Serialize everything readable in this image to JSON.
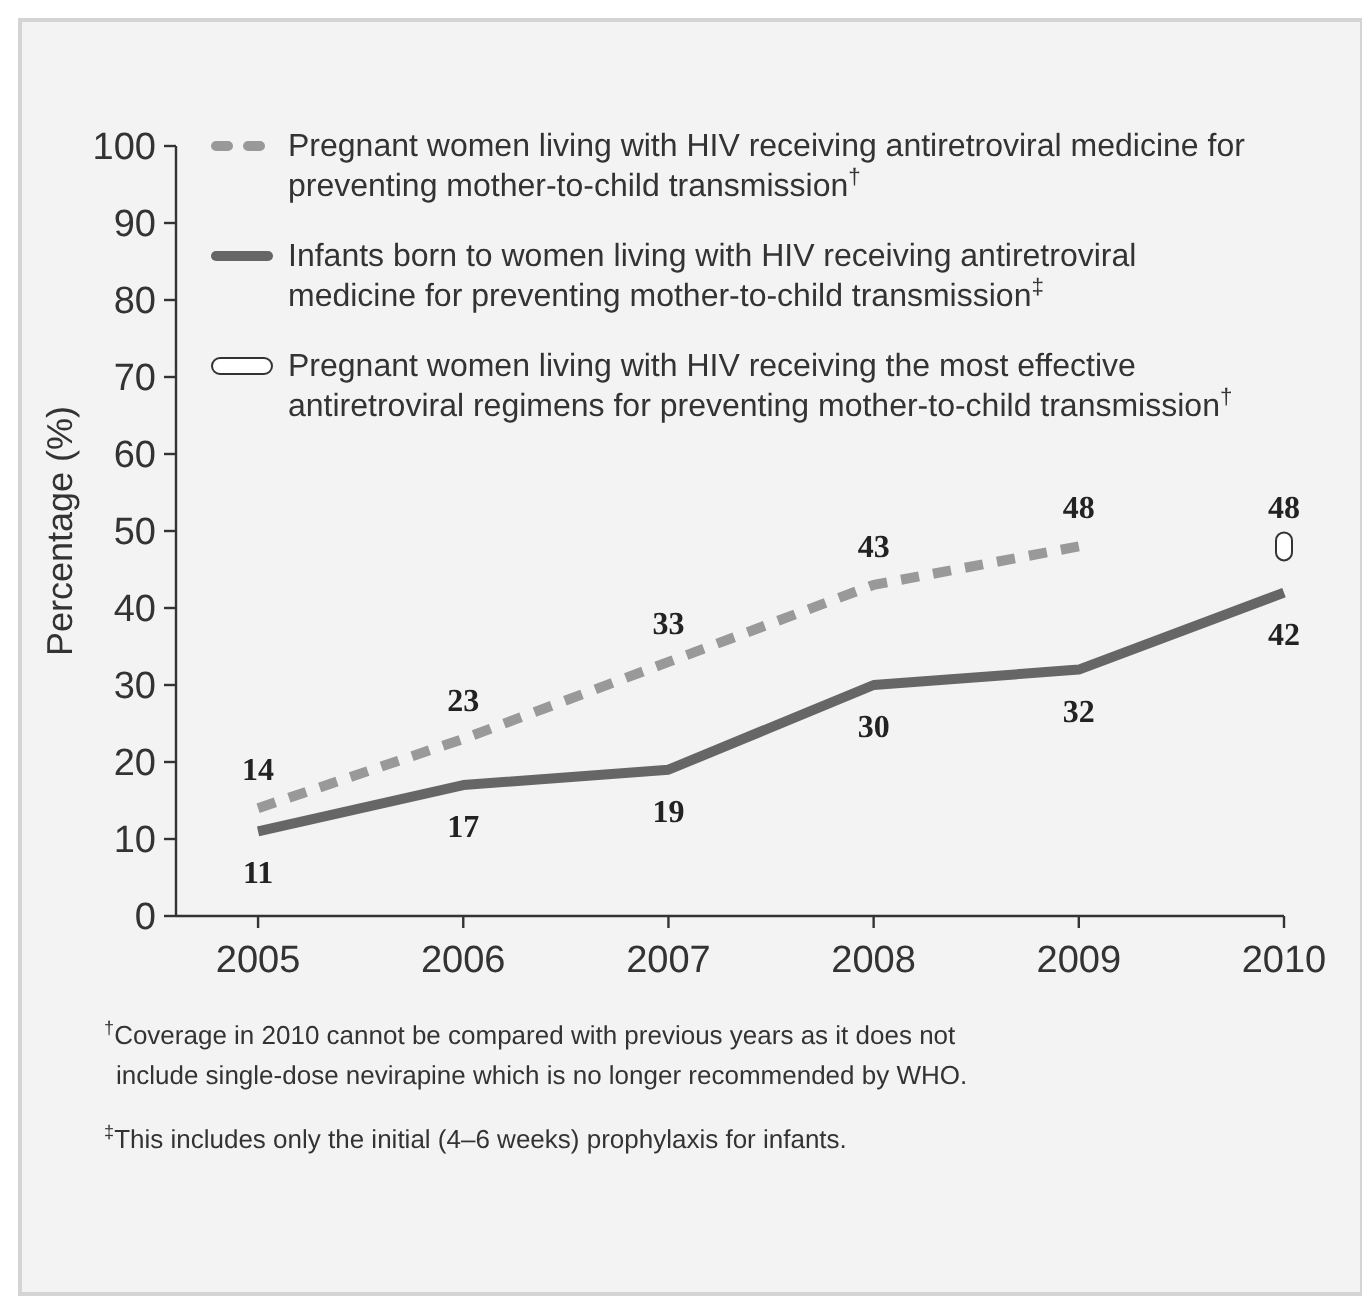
{
  "chart_data": {
    "type": "line",
    "ylabel": "Percentage (%)",
    "x": [
      2005,
      2006,
      2007,
      2008,
      2009,
      2010
    ],
    "xlim": [
      2004.6,
      2010
    ],
    "xticks": [
      2005,
      2006,
      2007,
      2008,
      2009,
      2010
    ],
    "ylim": [
      0,
      100
    ],
    "yticks": [
      0,
      10,
      20,
      30,
      40,
      50,
      60,
      70,
      80,
      90,
      100
    ],
    "series": [
      {
        "name": "Pregnant women living with HIV receiving antiretroviral medicine for preventing mother-to-child transmission$^{†}$",
        "color": "#999999",
        "line_style": "dashed",
        "x": [
          2005,
          2006,
          2007,
          2008,
          2009
        ],
        "values": [
          14,
          23,
          33,
          43,
          48
        ]
      },
      {
        "name": "Infants born to women living with HIV receiving antiretroviral medicine for preventing mother-to-child transmission$^{‡}$",
        "color": "#666666",
        "line_style": "solid",
        "values": [
          11,
          17,
          19,
          30,
          32,
          42
        ]
      },
      {
        "name": "Pregnant women living with HIV receiving the most effective antiretroviral regimens for preventing mother-to-child transmission$^{†}$",
        "type": "scatter",
        "color": "#ffffff",
        "x": [
          2010
        ],
        "values": [
          48
        ]
      }
    ],
    "data_labels": true,
    "legend": "top left",
    "grid": false,
    "annotations": [
      "$^{†}$Coverage in 2010 cannot be compared with previous years as it does not include single-dose nevirapine which is no longer recommended by WHO.",
      "$^{‡}$This includes only the initial (4–6 weeks) prophylaxis for infants."
    ]
  }
}
